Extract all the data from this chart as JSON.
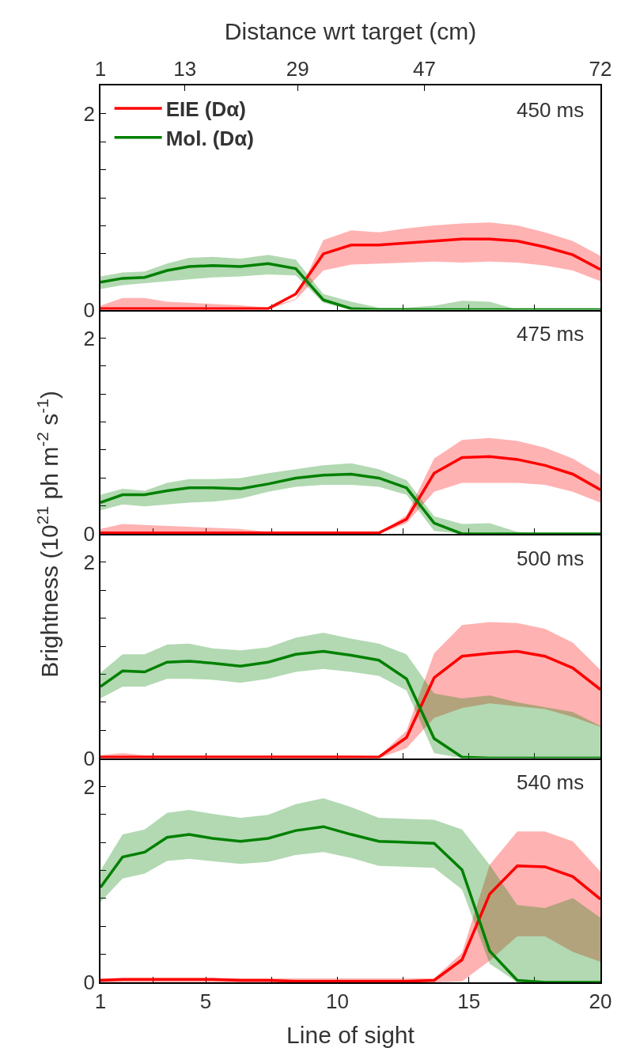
{
  "chart_data": [
    {
      "type": "line",
      "ylabel": "Brightness (10$^{21}$ ph m$^{-2}$ s$^{-1}$)",
      "x2label": "Distance wrt target (cm)",
      "annotations": [
        "450 ms"
      ],
      "legend": "top left",
      "tick_labels": "y",
      "x": [
        1,
        1.84,
        2.68,
        3.53,
        4.37,
        5.26,
        6.32,
        7.37,
        8.42,
        9.47,
        10.53,
        11.58,
        12.63,
        13.68,
        14.74,
        15.79,
        16.84,
        17.89,
        18.95,
        20
      ],
      "xlim": [
        1,
        20
      ],
      "xticks": [
        {
          "value": 5,
          "label": null
        },
        {
          "value": 7.5,
          "label": null
        },
        {
          "value": 10,
          "label": null
        },
        {
          "value": 12.5,
          "label": null
        },
        {
          "value": 15,
          "label": null
        },
        {
          "value": 17.5,
          "label": null
        }
      ],
      "x2lim": [
        1,
        72
      ],
      "x2ticks": [
        1,
        13,
        29,
        47,
        72
      ],
      "ylim": [
        0,
        2.29
      ],
      "yticks": [
        0,
        {
          "value": 0.286,
          "label": null
        },
        {
          "value": 0.571,
          "label": null
        },
        {
          "value": 0.857,
          "label": null
        },
        {
          "value": 1.143,
          "label": null
        },
        {
          "value": 1.429,
          "label": null
        },
        {
          "value": 1.714,
          "label": null
        },
        2
      ],
      "series": [
        {
          "name": "EIE (Dα)",
          "color": "#ff0000",
          "values": [
            0.01,
            0.01,
            0.01,
            0.01,
            0.01,
            0.01,
            0.01,
            0.01,
            0.16,
            0.57,
            0.66,
            0.66,
            0.68,
            0.7,
            0.72,
            0.72,
            0.7,
            0.64,
            0.56,
            0.41
          ],
          "upper": [
            0.04,
            0.12,
            0.12,
            0.08,
            0.07,
            0.06,
            0.045,
            0.02,
            0.11,
            0.71,
            0.81,
            0.79,
            0.83,
            0.86,
            0.88,
            0.89,
            0.86,
            0.79,
            0.7,
            0.55
          ],
          "lower": [
            0,
            0,
            0,
            0,
            0,
            0,
            0,
            0,
            0.1,
            0.4,
            0.46,
            0.47,
            0.48,
            0.49,
            0.48,
            0.49,
            0.48,
            0.45,
            0.4,
            0.29
          ]
        },
        {
          "name": "Mol. (Dα)",
          "color": "#008000",
          "values": [
            0.28,
            0.32,
            0.33,
            0.4,
            0.44,
            0.45,
            0.44,
            0.47,
            0.42,
            0.1,
            0.01,
            0,
            0,
            0,
            0,
            0,
            0,
            0,
            0,
            0
          ],
          "upper": [
            0.34,
            0.38,
            0.39,
            0.47,
            0.53,
            0.54,
            0.52,
            0.56,
            0.51,
            0.16,
            0.08,
            0.02,
            0.02,
            0.04,
            0.09,
            0.08,
            0,
            0,
            0,
            0
          ],
          "lower": [
            0.21,
            0.25,
            0.27,
            0.29,
            0.31,
            0.33,
            0.34,
            0.36,
            0.35,
            0.07,
            0,
            0,
            0,
            0,
            0,
            0,
            0,
            0,
            0,
            0
          ]
        }
      ]
    },
    {
      "type": "line",
      "annotations": [
        "475 ms"
      ],
      "tick_labels": "y",
      "x": [
        1,
        1.84,
        2.68,
        3.53,
        4.37,
        5.26,
        6.32,
        7.37,
        8.42,
        9.47,
        10.53,
        11.58,
        12.63,
        13.68,
        14.74,
        15.79,
        16.84,
        17.89,
        18.95,
        20
      ],
      "xlim": [
        1,
        20
      ],
      "xticks": [
        {
          "value": 1,
          "label": null
        },
        {
          "value": 3,
          "label": null
        },
        {
          "value": 5,
          "label": null
        },
        {
          "value": 7.5,
          "label": null
        },
        {
          "value": 10,
          "label": null
        },
        {
          "value": 12.5,
          "label": null
        },
        {
          "value": 15,
          "label": null
        },
        {
          "value": 17.5,
          "label": null
        },
        {
          "value": 20,
          "label": null
        }
      ],
      "ylim": [
        0,
        2.29
      ],
      "yticks": [
        0,
        {
          "value": 0.286,
          "label": null
        },
        {
          "value": 0.571,
          "label": null
        },
        {
          "value": 0.857,
          "label": null
        },
        {
          "value": 1.143,
          "label": null
        },
        {
          "value": 1.429,
          "label": null
        },
        {
          "value": 1.714,
          "label": null
        },
        2
      ],
      "series": [
        {
          "color": "#ff0000",
          "values": [
            0.01,
            0.01,
            0.01,
            0.01,
            0.01,
            0.01,
            0.01,
            0.01,
            0.01,
            0.01,
            0.01,
            0.01,
            0.15,
            0.62,
            0.78,
            0.79,
            0.76,
            0.7,
            0.61,
            0.45
          ],
          "upper": [
            0.05,
            0.1,
            0.09,
            0.08,
            0.07,
            0.06,
            0.05,
            0.02,
            0.01,
            0.01,
            0.01,
            0.01,
            0.19,
            0.77,
            0.96,
            0.98,
            0.95,
            0.88,
            0.77,
            0.6
          ],
          "lower": [
            0,
            0,
            0,
            0,
            0,
            0,
            0,
            0,
            0,
            0,
            0,
            0,
            0.11,
            0.43,
            0.52,
            0.52,
            0.52,
            0.5,
            0.43,
            0.32
          ]
        },
        {
          "color": "#008000",
          "values": [
            0.32,
            0.4,
            0.4,
            0.44,
            0.47,
            0.47,
            0.46,
            0.51,
            0.57,
            0.6,
            0.61,
            0.57,
            0.47,
            0.11,
            0,
            0,
            0,
            0,
            0,
            0
          ],
          "upper": [
            0.4,
            0.46,
            0.44,
            0.52,
            0.56,
            0.56,
            0.57,
            0.62,
            0.66,
            0.7,
            0.72,
            0.66,
            0.55,
            0.18,
            0.1,
            0.11,
            0.02,
            0,
            0,
            0
          ],
          "lower": [
            0.24,
            0.3,
            0.28,
            0.3,
            0.32,
            0.33,
            0.36,
            0.43,
            0.48,
            0.5,
            0.5,
            0.48,
            0.4,
            0.03,
            0,
            0,
            0,
            0,
            0,
            0
          ]
        }
      ]
    },
    {
      "type": "line",
      "annotations": [
        "500 ms"
      ],
      "tick_labels": "y",
      "x": [
        1,
        1.84,
        2.68,
        3.53,
        4.37,
        5.26,
        6.32,
        7.37,
        8.42,
        9.47,
        10.53,
        11.58,
        12.63,
        13.68,
        14.74,
        15.79,
        16.84,
        17.89,
        18.95,
        20
      ],
      "xlim": [
        1,
        20
      ],
      "xticks": [
        {
          "value": 1,
          "label": null
        },
        {
          "value": 3,
          "label": null
        },
        {
          "value": 5,
          "label": null
        },
        {
          "value": 7.5,
          "label": null
        },
        {
          "value": 10,
          "label": null
        },
        {
          "value": 12.5,
          "label": null
        },
        {
          "value": 15,
          "label": null
        },
        {
          "value": 17.5,
          "label": null
        },
        {
          "value": 20,
          "label": null
        }
      ],
      "ylim": [
        0,
        2.29
      ],
      "yticks": [
        0,
        {
          "value": 0.286,
          "label": null
        },
        {
          "value": 0.571,
          "label": null
        },
        {
          "value": 0.857,
          "label": null
        },
        {
          "value": 1.143,
          "label": null
        },
        {
          "value": 1.429,
          "label": null
        },
        {
          "value": 1.714,
          "label": null
        },
        2
      ],
      "series": [
        {
          "color": "#ff0000",
          "values": [
            0.01,
            0.01,
            0.01,
            0.01,
            0.01,
            0.01,
            0.01,
            0.01,
            0.01,
            0.01,
            0.01,
            0.01,
            0.21,
            0.82,
            1.04,
            1.07,
            1.09,
            1.04,
            0.92,
            0.7
          ],
          "upper": [
            0.03,
            0.05,
            0.03,
            0.03,
            0.03,
            0.03,
            0.03,
            0.03,
            0.03,
            0.03,
            0.03,
            0.02,
            0.28,
            1.07,
            1.36,
            1.39,
            1.38,
            1.32,
            1.18,
            0.9
          ],
          "lower": [
            0,
            0,
            0,
            0,
            0,
            0,
            0,
            0,
            0,
            0,
            0,
            0,
            0.1,
            0.41,
            0.51,
            0.56,
            0.53,
            0.5,
            0.42,
            0.32
          ]
        },
        {
          "color": "#008000",
          "values": [
            0.73,
            0.89,
            0.88,
            0.98,
            0.99,
            0.97,
            0.94,
            0.98,
            1.06,
            1.09,
            1.05,
            1.0,
            0.81,
            0.2,
            0.01,
            0,
            0,
            0,
            0,
            0
          ],
          "upper": [
            0.87,
            1.06,
            1.06,
            1.16,
            1.17,
            1.12,
            1.1,
            1.13,
            1.23,
            1.28,
            1.22,
            1.17,
            1.06,
            0.66,
            0.61,
            0.64,
            0.57,
            0.52,
            0.47,
            0.33
          ],
          "lower": [
            0.61,
            0.73,
            0.73,
            0.81,
            0.81,
            0.8,
            0.77,
            0.81,
            0.88,
            0.91,
            0.88,
            0.84,
            0.69,
            0.05,
            0,
            0,
            0,
            0,
            0,
            0
          ]
        }
      ]
    },
    {
      "type": "line",
      "annotations": [
        "540 ms"
      ],
      "xlabel": "Line of sight",
      "x": [
        1,
        1.84,
        2.68,
        3.53,
        4.37,
        5.26,
        6.32,
        7.37,
        8.42,
        9.47,
        10.53,
        11.58,
        12.63,
        13.68,
        14.74,
        15.79,
        16.84,
        17.89,
        18.95,
        20
      ],
      "xlim": [
        1,
        20
      ],
      "xticks": [
        1,
        {
          "value": 3,
          "label": null
        },
        5,
        {
          "value": 7.5,
          "label": null
        },
        10,
        {
          "value": 12.5,
          "label": null
        },
        15,
        {
          "value": 17.5,
          "label": null
        },
        20
      ],
      "ylim": [
        0,
        2.29
      ],
      "yticks": [
        0,
        {
          "value": 0.286,
          "label": null
        },
        {
          "value": 0.571,
          "label": null
        },
        {
          "value": 0.857,
          "label": null
        },
        {
          "value": 1.143,
          "label": null
        },
        {
          "value": 1.429,
          "label": null
        },
        {
          "value": 1.714,
          "label": null
        },
        2
      ],
      "series": [
        {
          "color": "#ff0000",
          "values": [
            0.02,
            0.03,
            0.03,
            0.03,
            0.03,
            0.03,
            0.02,
            0.02,
            0.01,
            0.01,
            0.01,
            0.01,
            0.01,
            0.02,
            0.23,
            0.9,
            1.19,
            1.18,
            1.08,
            0.85
          ],
          "upper": [
            0.04,
            0.04,
            0.04,
            0.04,
            0.04,
            0.04,
            0.04,
            0.04,
            0.04,
            0.04,
            0.04,
            0.04,
            0.04,
            0.04,
            0.3,
            1.2,
            1.54,
            1.54,
            1.44,
            1.13
          ],
          "lower": [
            0,
            0,
            0,
            0,
            0,
            0,
            0,
            0,
            0,
            0,
            0,
            0,
            0,
            0,
            0.01,
            0.22,
            0.47,
            0.47,
            0.31,
            0.21
          ]
        },
        {
          "color": "#008000",
          "values": [
            0.97,
            1.28,
            1.33,
            1.48,
            1.51,
            1.47,
            1.44,
            1.47,
            1.55,
            1.59,
            1.51,
            1.44,
            1.43,
            1.42,
            1.15,
            0.32,
            0.02,
            0,
            0,
            0
          ],
          "upper": [
            1.14,
            1.51,
            1.56,
            1.73,
            1.76,
            1.72,
            1.68,
            1.71,
            1.82,
            1.88,
            1.79,
            1.68,
            1.67,
            1.66,
            1.56,
            1.2,
            0.79,
            0.76,
            0.86,
            0.66
          ],
          "lower": [
            0.82,
            1.06,
            1.11,
            1.24,
            1.26,
            1.24,
            1.21,
            1.23,
            1.3,
            1.33,
            1.27,
            1.19,
            1.18,
            1.17,
            0.95,
            0.19,
            0,
            0,
            0,
            0
          ]
        }
      ]
    }
  ]
}
